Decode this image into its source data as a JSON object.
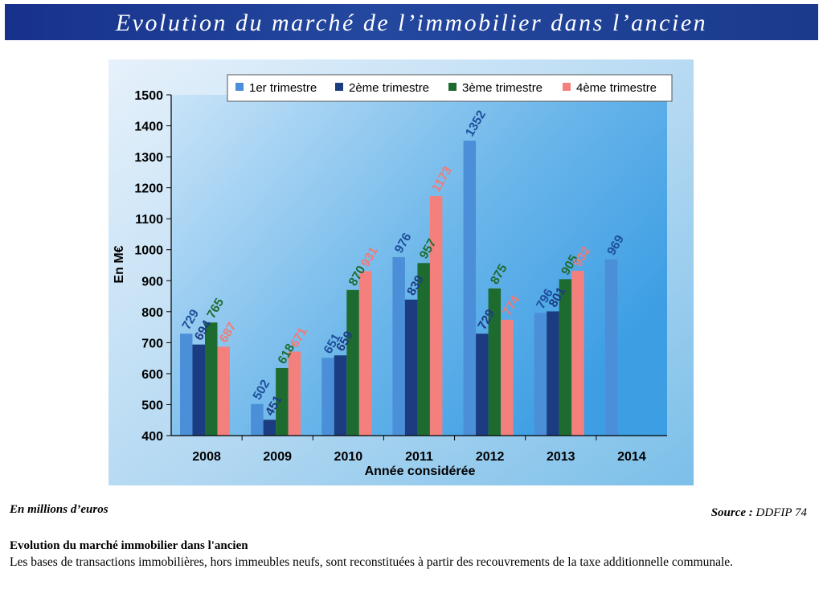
{
  "banner_title": "Evolution du marché de l’immobilier dans l’ancien",
  "units_note": "En millions d’euros",
  "source": {
    "label": "Source :",
    "value": "DDFIP 74"
  },
  "section": {
    "title": "Evolution du marché immobilier dans l'ancien",
    "text": "Les bases de transactions immobilières, hors immeubles neufs, sont reconstituées à partir des recouvrements de la taxe additionnelle communale."
  },
  "chart_data": {
    "type": "bar",
    "title": "",
    "xlabel": "Année considérée",
    "ylabel": "En M€",
    "ylim": [
      400,
      1500
    ],
    "yticks": [
      "400",
      "500",
      "600",
      "700",
      "800",
      "900",
      "1000",
      "1100",
      "1200",
      "1300",
      "1400",
      "1500"
    ],
    "categories": [
      "2008",
      "2009",
      "2010",
      "2011",
      "2012",
      "2013",
      "2014"
    ],
    "legend_position": "top-right",
    "grid": false,
    "series": [
      {
        "name": "1er trimestre",
        "color": "#4a8fd8",
        "label_color": "#1e4f9c",
        "values": [
          729,
          502,
          651,
          976,
          1352,
          796,
          969
        ],
        "labels": [
          "729",
          "502",
          "651",
          "976",
          "1352",
          "796",
          "969"
        ]
      },
      {
        "name": "2ème trimestre",
        "color": "#1b3c80",
        "label_color": "#1b3c80",
        "values": [
          694,
          451,
          659,
          839,
          729,
          801,
          null
        ],
        "labels": [
          "694",
          "451",
          "659",
          "839",
          "729",
          "801",
          ""
        ]
      },
      {
        "name": "3ème trimestre",
        "color": "#1e6b30",
        "label_color": "#1e6b30",
        "values": [
          765,
          618,
          870,
          957,
          875,
          905,
          null
        ],
        "labels": [
          "765",
          "618",
          "870",
          "957",
          "875",
          "905",
          ""
        ]
      },
      {
        "name": "4ème trimestre",
        "color": "#f4807e",
        "label_color": "#f27a77",
        "values": [
          687,
          671,
          931,
          1173,
          774,
          932,
          null
        ],
        "labels": [
          "687",
          "671",
          "931",
          "1173",
          "774",
          "932",
          ""
        ]
      }
    ]
  }
}
